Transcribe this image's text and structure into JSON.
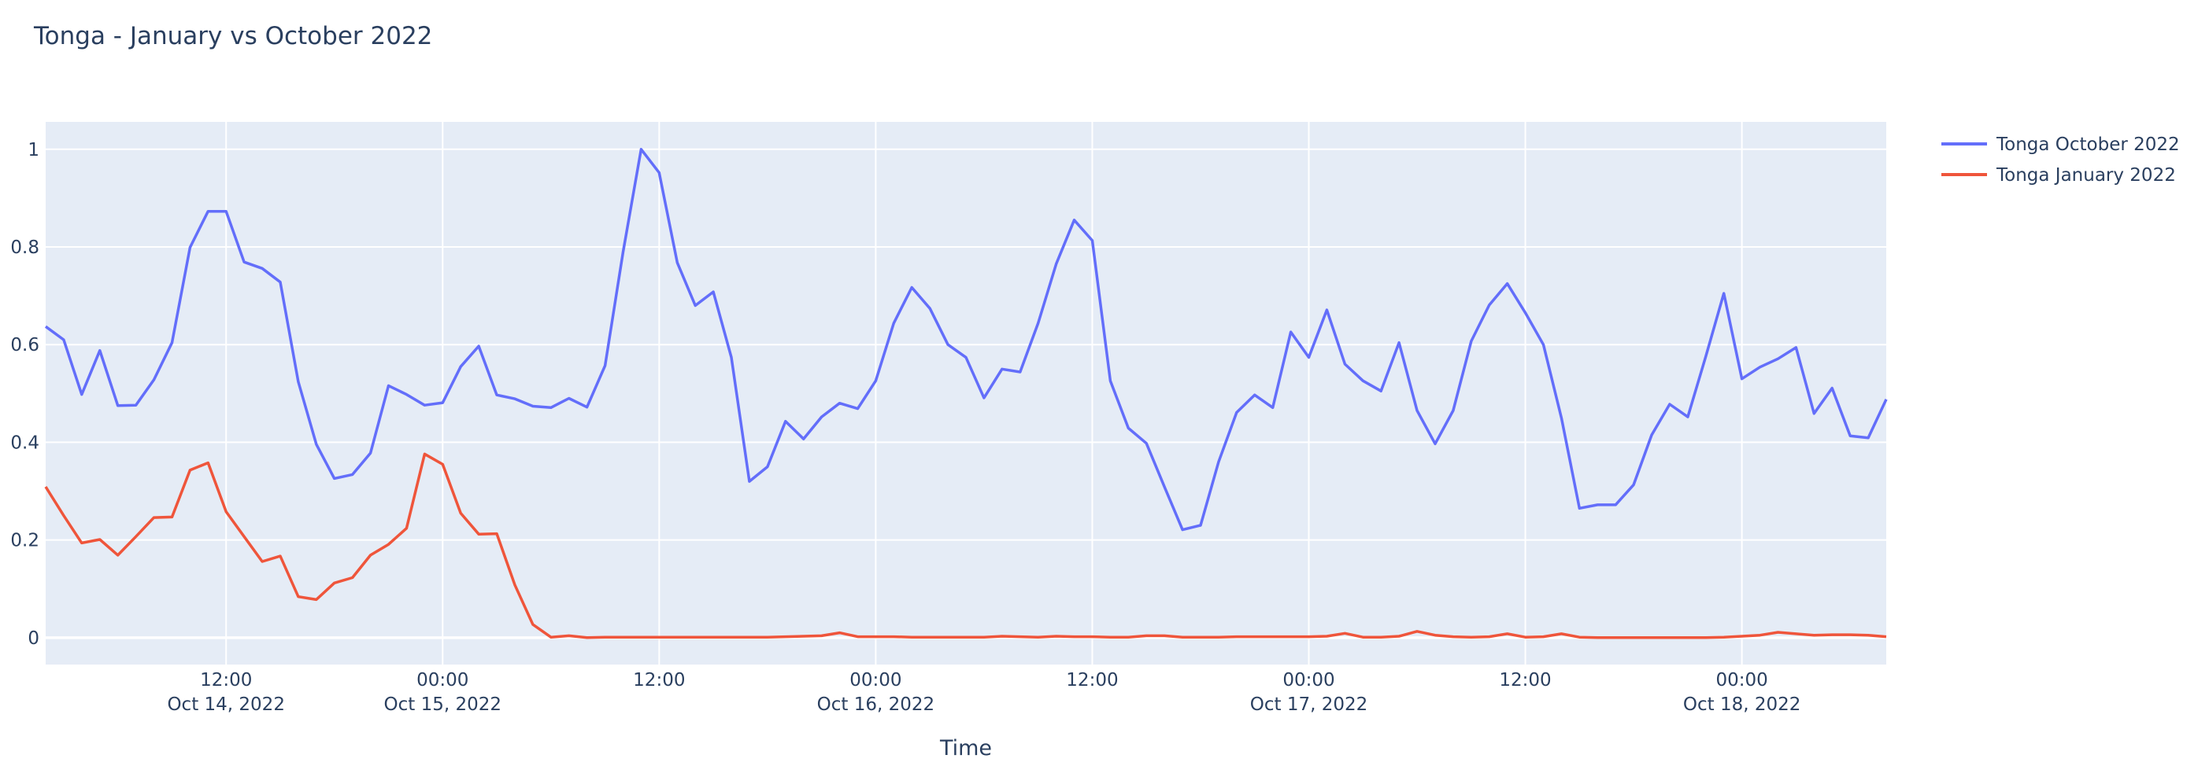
{
  "chart_data": {
    "type": "line",
    "title": "Tonga - January vs October 2022",
    "xlabel": "Time",
    "ylabel": "",
    "ylim": [
      -0.055,
      1.056
    ],
    "grid": true,
    "legend_position": "top-right, outside plot",
    "background_color": "#E5ECF6",
    "y_ticks": [
      {
        "value": 0,
        "label": "0"
      },
      {
        "value": 0.2,
        "label": "0.2"
      },
      {
        "value": 0.4,
        "label": "0.4"
      },
      {
        "value": 0.6,
        "label": "0.6"
      },
      {
        "value": 0.8,
        "label": "0.8"
      },
      {
        "value": 1,
        "label": "1"
      }
    ],
    "x_ticks": [
      {
        "value": "2022-10-14 12:00",
        "line1": "12:00",
        "line2": "Oct 14, 2022"
      },
      {
        "value": "2022-10-15 00:00",
        "line1": "00:00",
        "line2": "Oct 15, 2022"
      },
      {
        "value": "2022-10-15 12:00",
        "line1": "12:00",
        "line2": ""
      },
      {
        "value": "2022-10-16 00:00",
        "line1": "00:00",
        "line2": "Oct 16, 2022"
      },
      {
        "value": "2022-10-16 12:00",
        "line1": "12:00",
        "line2": ""
      },
      {
        "value": "2022-10-17 00:00",
        "line1": "00:00",
        "line2": "Oct 17, 2022"
      },
      {
        "value": "2022-10-17 12:00",
        "line1": "12:00",
        "line2": ""
      },
      {
        "value": "2022-10-18 00:00",
        "line1": "00:00",
        "line2": "Oct 18, 2022"
      }
    ],
    "x": [
      "2022-10-14 02:00",
      "2022-10-14 03:00",
      "2022-10-14 04:00",
      "2022-10-14 05:00",
      "2022-10-14 06:00",
      "2022-10-14 07:00",
      "2022-10-14 08:00",
      "2022-10-14 09:00",
      "2022-10-14 10:00",
      "2022-10-14 11:00",
      "2022-10-14 12:00",
      "2022-10-14 13:00",
      "2022-10-14 14:00",
      "2022-10-14 15:00",
      "2022-10-14 16:00",
      "2022-10-14 17:00",
      "2022-10-14 18:00",
      "2022-10-14 19:00",
      "2022-10-14 20:00",
      "2022-10-14 21:00",
      "2022-10-14 22:00",
      "2022-10-14 23:00",
      "2022-10-15 00:00",
      "2022-10-15 01:00",
      "2022-10-15 02:00",
      "2022-10-15 03:00",
      "2022-10-15 04:00",
      "2022-10-15 05:00",
      "2022-10-15 06:00",
      "2022-10-15 07:00",
      "2022-10-15 08:00",
      "2022-10-15 09:00",
      "2022-10-15 10:00",
      "2022-10-15 11:00",
      "2022-10-15 12:00",
      "2022-10-15 13:00",
      "2022-10-15 14:00",
      "2022-10-15 15:00",
      "2022-10-15 16:00",
      "2022-10-15 17:00",
      "2022-10-15 18:00",
      "2022-10-15 19:00",
      "2022-10-15 20:00",
      "2022-10-15 21:00",
      "2022-10-15 22:00",
      "2022-10-15 23:00",
      "2022-10-16 00:00",
      "2022-10-16 01:00",
      "2022-10-16 02:00",
      "2022-10-16 03:00",
      "2022-10-16 04:00",
      "2022-10-16 05:00",
      "2022-10-16 06:00",
      "2022-10-16 07:00",
      "2022-10-16 08:00",
      "2022-10-16 09:00",
      "2022-10-16 10:00",
      "2022-10-16 11:00",
      "2022-10-16 12:00",
      "2022-10-16 13:00",
      "2022-10-16 14:00",
      "2022-10-16 15:00",
      "2022-10-16 16:00",
      "2022-10-16 17:00",
      "2022-10-16 18:00",
      "2022-10-16 19:00",
      "2022-10-16 20:00",
      "2022-10-16 21:00",
      "2022-10-16 22:00",
      "2022-10-16 23:00",
      "2022-10-17 00:00",
      "2022-10-17 01:00",
      "2022-10-17 02:00",
      "2022-10-17 03:00",
      "2022-10-17 04:00",
      "2022-10-17 05:00",
      "2022-10-17 06:00",
      "2022-10-17 07:00",
      "2022-10-17 08:00",
      "2022-10-17 09:00",
      "2022-10-17 10:00",
      "2022-10-17 11:00",
      "2022-10-17 12:00",
      "2022-10-17 13:00",
      "2022-10-17 14:00",
      "2022-10-17 15:00",
      "2022-10-17 16:00",
      "2022-10-17 17:00",
      "2022-10-17 18:00",
      "2022-10-17 19:00",
      "2022-10-17 20:00",
      "2022-10-17 21:00",
      "2022-10-17 22:00",
      "2022-10-17 23:00",
      "2022-10-18 00:00",
      "2022-10-18 01:00",
      "2022-10-18 02:00",
      "2022-10-18 03:00",
      "2022-10-18 04:00",
      "2022-10-18 05:00",
      "2022-10-18 06:00",
      "2022-10-18 07:00",
      "2022-10-18 08:00"
    ],
    "series": [
      {
        "name": "Tonga October 2022",
        "color": "#636EFA",
        "values": [
          0.637,
          0.61,
          0.498,
          0.588,
          0.475,
          0.476,
          0.528,
          0.604,
          0.799,
          0.873,
          0.873,
          0.769,
          0.756,
          0.728,
          0.524,
          0.396,
          0.326,
          0.334,
          0.378,
          0.516,
          0.498,
          0.476,
          0.481,
          0.555,
          0.597,
          0.497,
          0.489,
          0.474,
          0.471,
          0.49,
          0.472,
          0.557,
          0.79,
          1.0,
          0.952,
          0.768,
          0.68,
          0.708,
          0.574,
          0.32,
          0.35,
          0.443,
          0.407,
          0.452,
          0.48,
          0.469,
          0.526,
          0.644,
          0.717,
          0.674,
          0.6,
          0.574,
          0.491,
          0.55,
          0.544,
          0.644,
          0.765,
          0.855,
          0.813,
          0.526,
          0.429,
          0.398,
          0.309,
          0.221,
          0.23,
          0.36,
          0.461,
          0.497,
          0.471,
          0.626,
          0.574,
          0.671,
          0.56,
          0.526,
          0.505,
          0.604,
          0.465,
          0.397,
          0.465,
          0.607,
          0.681,
          0.725,
          0.665,
          0.6,
          0.45,
          0.265,
          0.272,
          0.272,
          0.313,
          0.415,
          0.478,
          0.452,
          0.576,
          0.705,
          0.53,
          0.554,
          0.571,
          0.594,
          0.459,
          0.511,
          0.413,
          0.409,
          0.488
        ]
      },
      {
        "name": "Tonga January 2022",
        "color": "#EF553B",
        "values": [
          0.309,
          0.25,
          0.194,
          0.201,
          0.169,
          0.207,
          0.246,
          0.247,
          0.343,
          0.358,
          0.258,
          0.207,
          0.156,
          0.167,
          0.084,
          0.078,
          0.112,
          0.123,
          0.169,
          0.191,
          0.224,
          0.376,
          0.355,
          0.255,
          0.212,
          0.213,
          0.108,
          0.027,
          0.001,
          0.004,
          0.0,
          0.001,
          0.001,
          0.001,
          0.001,
          0.001,
          0.001,
          0.001,
          0.001,
          0.001,
          0.001,
          0.002,
          0.003,
          0.004,
          0.01,
          0.002,
          0.002,
          0.002,
          0.001,
          0.001,
          0.001,
          0.001,
          0.001,
          0.003,
          0.002,
          0.001,
          0.003,
          0.002,
          0.002,
          0.001,
          0.001,
          0.004,
          0.004,
          0.001,
          0.001,
          0.001,
          0.002,
          0.002,
          0.002,
          0.002,
          0.002,
          0.003,
          0.009,
          0.001,
          0.001,
          0.003,
          0.013,
          0.005,
          0.002,
          0.001,
          0.002,
          0.008,
          0.001,
          0.002,
          0.008,
          0.001,
          0.0,
          0.0,
          0.0,
          0.0,
          0.0,
          0.0,
          0.0,
          0.001,
          0.003,
          0.005,
          0.011,
          0.008,
          0.005,
          0.006,
          0.006,
          0.005,
          0.002
        ]
      }
    ]
  }
}
